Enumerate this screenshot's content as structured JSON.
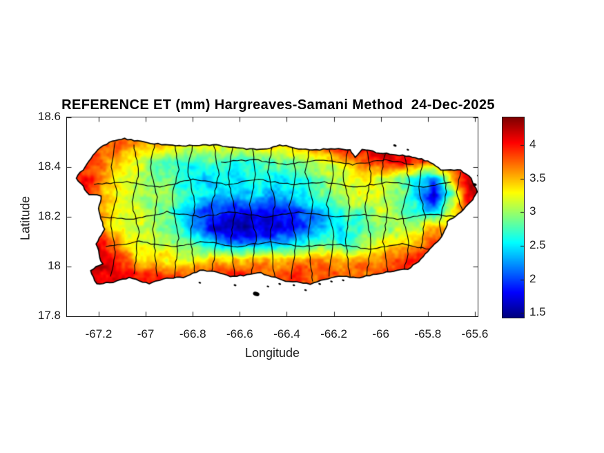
{
  "figure": {
    "background": "#ffffff",
    "colors": {
      "title_text": "#000000",
      "axis_text": "#1b1b1b",
      "axis_line": "#1b1b1b",
      "boundary_line": "#000000",
      "coastline": "#000000",
      "colorbar_low": "#000080",
      "colorbar_high": "#800000"
    }
  },
  "chart_data": {
    "type": "heatmap",
    "title": "REFERENCE ET (mm) Hargreaves-Samani Method  24-Dec-2025",
    "xlabel": "Longitude",
    "ylabel": "Latitude",
    "units": "mm",
    "region": "Puerto Rico with municipal boundaries",
    "colormap": "jet",
    "xlim": [
      -67.335,
      -65.588
    ],
    "ylim": [
      17.8,
      18.6
    ],
    "x_ticks": {
      "values": [
        -67.2,
        -67.0,
        -66.8,
        -66.6,
        -66.4,
        -66.2,
        -66.0,
        -65.8,
        -65.6
      ],
      "labels": [
        "-67.2",
        "-67",
        "-66.8",
        "-66.6",
        "-66.4",
        "-66.2",
        "-66",
        "-65.8",
        "-65.6"
      ]
    },
    "y_ticks": {
      "values": [
        18.6,
        18.4,
        18.2,
        18.0,
        17.8
      ],
      "labels": [
        "18.6",
        "18.4",
        "18.2",
        "18",
        "17.8"
      ]
    },
    "colorbar": {
      "clim": [
        1.43,
        4.41
      ],
      "tick_values": [
        4,
        3.5,
        3,
        2.5,
        2,
        1.5
      ],
      "tick_labels": [
        "4",
        "3.5",
        "3",
        "2.5",
        "2",
        "1.5"
      ]
    },
    "grid": {
      "lon0": -67.35,
      "dlon": 0.075,
      "ncols": 25,
      "lat0": 18.55,
      "dlat": -0.065,
      "nrows": 11,
      "values": [
        [
          3.8,
          3.8,
          3.7,
          3.6,
          3.5,
          3.4,
          3.4,
          3.4,
          3.4,
          3.4,
          3.4,
          3.5,
          3.5,
          3.5,
          3.6,
          3.6,
          3.8,
          4.0,
          4.1,
          4.1,
          4.2,
          4.2,
          4.2,
          4.2,
          4.2
        ],
        [
          3.8,
          3.9,
          3.8,
          3.8,
          3.6,
          3.4,
          3.4,
          3.3,
          3.3,
          3.2,
          3.3,
          3.3,
          3.4,
          3.5,
          3.6,
          3.8,
          4.0,
          4.1,
          4.1,
          4.0,
          4.1,
          4.1,
          4.2,
          4.2,
          4.2
        ],
        [
          3.9,
          3.9,
          3.7,
          3.5,
          3.2,
          2.9,
          2.7,
          2.6,
          2.7,
          2.7,
          2.6,
          2.7,
          2.8,
          2.9,
          3.0,
          3.2,
          3.5,
          3.8,
          4.0,
          4.0,
          3.9,
          3.8,
          4.1,
          4.2,
          4.2
        ],
        [
          4.0,
          4.0,
          3.8,
          3.4,
          3.2,
          3.0,
          2.8,
          2.6,
          2.5,
          2.6,
          2.4,
          2.6,
          2.5,
          2.7,
          2.8,
          3.0,
          3.2,
          3.3,
          3.2,
          2.9,
          2.6,
          2.2,
          3.4,
          4.2,
          4.3
        ],
        [
          4.1,
          4.1,
          3.6,
          3.3,
          3.1,
          3.0,
          2.9,
          2.7,
          2.5,
          2.4,
          2.3,
          2.4,
          2.3,
          2.4,
          2.6,
          2.9,
          3.1,
          3.3,
          3.2,
          2.9,
          2.4,
          1.6,
          2.8,
          4.2,
          4.3
        ],
        [
          4.2,
          4.0,
          3.5,
          3.2,
          3.1,
          3.0,
          2.8,
          2.4,
          2.0,
          1.9,
          1.8,
          1.9,
          1.8,
          2.0,
          2.2,
          2.5,
          2.8,
          2.8,
          3.1,
          3.0,
          2.6,
          2.4,
          3.3,
          4.0,
          4.2
        ],
        [
          4.3,
          4.1,
          3.6,
          3.3,
          3.2,
          3.1,
          2.9,
          2.5,
          1.9,
          1.6,
          1.5,
          1.7,
          1.6,
          1.8,
          2.1,
          2.4,
          2.6,
          2.8,
          2.9,
          3.1,
          3.0,
          3.5,
          3.6,
          4.0,
          4.1
        ],
        [
          4.3,
          4.1,
          4.0,
          3.5,
          3.3,
          3.2,
          3.1,
          2.9,
          2.5,
          2.2,
          2.1,
          2.2,
          2.2,
          2.4,
          2.6,
          2.8,
          2.7,
          3.0,
          3.2,
          3.3,
          3.5,
          3.8,
          4.0,
          4.1,
          4.1
        ],
        [
          4.4,
          4.2,
          4.2,
          4.0,
          3.5,
          3.4,
          3.3,
          3.2,
          3.4,
          3.4,
          3.5,
          3.5,
          3.5,
          3.6,
          3.6,
          3.6,
          3.5,
          3.6,
          3.6,
          3.8,
          3.9,
          4.0,
          4.1,
          4.1,
          4.1
        ],
        [
          4.4,
          4.3,
          4.2,
          4.1,
          3.9,
          3.9,
          4.0,
          3.8,
          3.8,
          3.9,
          4.0,
          3.8,
          3.7,
          4.0,
          3.8,
          3.8,
          3.7,
          3.8,
          3.9,
          4.0,
          4.0,
          4.0,
          4.1,
          4.1,
          4.1
        ],
        [
          4.4,
          4.3,
          4.2,
          4.1,
          4.0,
          3.9,
          4.0,
          3.9,
          3.8,
          3.9,
          4.0,
          3.9,
          3.8,
          3.8,
          3.8,
          3.8,
          3.8,
          3.8,
          3.9,
          4.0,
          4.0,
          4.0,
          4.1,
          4.1,
          4.1
        ]
      ]
    },
    "coastline": [
      [
        -67.295,
        18.355
      ],
      [
        -67.205,
        18.47
      ],
      [
        -67.155,
        18.5
      ],
      [
        -67.09,
        18.515
      ],
      [
        -66.98,
        18.495
      ],
      [
        -66.9,
        18.49
      ],
      [
        -66.8,
        18.485
      ],
      [
        -66.7,
        18.49
      ],
      [
        -66.6,
        18.475
      ],
      [
        -66.5,
        18.47
      ],
      [
        -66.43,
        18.49
      ],
      [
        -66.35,
        18.475
      ],
      [
        -66.26,
        18.47
      ],
      [
        -66.18,
        18.475
      ],
      [
        -66.13,
        18.47
      ],
      [
        -66.11,
        18.44
      ],
      [
        -66.08,
        18.47
      ],
      [
        -65.99,
        18.455
      ],
      [
        -65.88,
        18.445
      ],
      [
        -65.8,
        18.425
      ],
      [
        -65.745,
        18.39
      ],
      [
        -65.66,
        18.39
      ],
      [
        -65.615,
        18.355
      ],
      [
        -65.59,
        18.3
      ],
      [
        -65.61,
        18.27
      ],
      [
        -65.65,
        18.23
      ],
      [
        -65.715,
        18.18
      ],
      [
        -65.74,
        18.12
      ],
      [
        -65.8,
        18.06
      ],
      [
        -65.84,
        18.02
      ],
      [
        -65.885,
        17.99
      ],
      [
        -65.99,
        17.975
      ],
      [
        -66.09,
        17.955
      ],
      [
        -66.16,
        17.96
      ],
      [
        -66.21,
        17.955
      ],
      [
        -66.3,
        17.93
      ],
      [
        -66.42,
        17.945
      ],
      [
        -66.51,
        17.975
      ],
      [
        -66.57,
        17.965
      ],
      [
        -66.64,
        17.96
      ],
      [
        -66.71,
        17.98
      ],
      [
        -66.77,
        17.985
      ],
      [
        -66.84,
        17.955
      ],
      [
        -66.91,
        17.955
      ],
      [
        -66.985,
        17.93
      ],
      [
        -67.07,
        17.955
      ],
      [
        -67.125,
        17.94
      ],
      [
        -67.21,
        17.93
      ],
      [
        -67.235,
        17.985
      ],
      [
        -67.185,
        18.01
      ],
      [
        -67.21,
        18.09
      ],
      [
        -67.175,
        18.15
      ],
      [
        -67.2,
        18.22
      ],
      [
        -67.19,
        18.285
      ],
      [
        -67.24,
        18.29
      ],
      [
        -67.295,
        18.355
      ]
    ],
    "islets": [
      [
        -66.53,
        17.89,
        3.0
      ],
      [
        -66.62,
        17.925,
        1.3
      ],
      [
        -66.48,
        17.92,
        1.2
      ],
      [
        -66.43,
        17.93,
        1.3
      ],
      [
        -66.37,
        17.925,
        1.2
      ],
      [
        -66.32,
        17.905,
        1.2
      ],
      [
        -66.26,
        17.93,
        1.3
      ],
      [
        -66.21,
        17.94,
        1.2
      ],
      [
        -66.16,
        17.945,
        1.2
      ],
      [
        -66.77,
        17.935,
        1.2
      ],
      [
        -65.6,
        18.33,
        1.8
      ],
      [
        -65.575,
        18.305,
        1.3
      ],
      [
        -65.585,
        18.365,
        1.3
      ],
      [
        -65.94,
        18.487,
        1.6
      ],
      [
        -65.885,
        18.47,
        1.2
      ]
    ],
    "boundaries": [
      [
        [
          -67.13,
          18.5
        ],
        [
          -67.15,
          18.4
        ],
        [
          -67.12,
          18.3
        ],
        [
          -67.15,
          18.18
        ],
        [
          -67.13,
          18.06
        ],
        [
          -67.15,
          17.96
        ]
      ],
      [
        [
          -67.05,
          18.49
        ],
        [
          -67.03,
          18.38
        ],
        [
          -67.06,
          18.26
        ],
        [
          -67.03,
          18.14
        ],
        [
          -67.05,
          17.97
        ]
      ],
      [
        [
          -66.96,
          18.51
        ],
        [
          -66.98,
          18.4
        ],
        [
          -66.95,
          18.28
        ],
        [
          -66.97,
          18.15
        ],
        [
          -66.95,
          17.96
        ]
      ],
      [
        [
          -66.88,
          18.5
        ],
        [
          -66.86,
          18.39
        ],
        [
          -66.89,
          18.27
        ],
        [
          -66.86,
          18.13
        ],
        [
          -66.88,
          17.95
        ]
      ],
      [
        [
          -66.8,
          18.5
        ],
        [
          -66.82,
          18.38
        ],
        [
          -66.79,
          18.25
        ],
        [
          -66.81,
          18.12
        ],
        [
          -66.79,
          17.97
        ]
      ],
      [
        [
          -66.71,
          18.5
        ],
        [
          -66.69,
          18.37
        ],
        [
          -66.72,
          18.24
        ],
        [
          -66.7,
          18.11
        ],
        [
          -66.72,
          17.96
        ]
      ],
      [
        [
          -66.63,
          18.49
        ],
        [
          -66.65,
          18.36
        ],
        [
          -66.62,
          18.23
        ],
        [
          -66.64,
          18.1
        ],
        [
          -66.62,
          17.95
        ]
      ],
      [
        [
          -66.55,
          18.49
        ],
        [
          -66.53,
          18.37
        ],
        [
          -66.56,
          18.25
        ],
        [
          -66.53,
          18.12
        ],
        [
          -66.55,
          17.97
        ]
      ],
      [
        [
          -66.46,
          18.5
        ],
        [
          -66.48,
          18.38
        ],
        [
          -66.45,
          18.26
        ],
        [
          -66.47,
          18.13
        ],
        [
          -66.45,
          17.94
        ]
      ],
      [
        [
          -66.38,
          18.49
        ],
        [
          -66.36,
          18.37
        ],
        [
          -66.39,
          18.24
        ],
        [
          -66.36,
          18.11
        ],
        [
          -66.38,
          17.95
        ]
      ],
      [
        [
          -66.3,
          18.49
        ],
        [
          -66.32,
          18.38
        ],
        [
          -66.29,
          18.26
        ],
        [
          -66.31,
          18.12
        ],
        [
          -66.29,
          17.94
        ]
      ],
      [
        [
          -66.22,
          18.48
        ],
        [
          -66.2,
          18.37
        ],
        [
          -66.23,
          18.25
        ],
        [
          -66.2,
          18.12
        ],
        [
          -66.22,
          17.96
        ]
      ],
      [
        [
          -66.14,
          18.48
        ],
        [
          -66.16,
          18.36
        ],
        [
          -66.13,
          18.24
        ],
        [
          -66.15,
          18.11
        ],
        [
          -66.13,
          17.95
        ]
      ],
      [
        [
          -66.06,
          18.47
        ],
        [
          -66.04,
          18.36
        ],
        [
          -66.07,
          18.24
        ],
        [
          -66.04,
          18.1
        ],
        [
          -66.06,
          17.96
        ]
      ],
      [
        [
          -65.98,
          18.47
        ],
        [
          -66.0,
          18.35
        ],
        [
          -65.97,
          18.23
        ],
        [
          -65.99,
          18.1
        ],
        [
          -65.97,
          17.97
        ]
      ],
      [
        [
          -65.9,
          18.46
        ],
        [
          -65.88,
          18.34
        ],
        [
          -65.91,
          18.22
        ],
        [
          -65.88,
          18.08
        ],
        [
          -65.9,
          17.99
        ]
      ],
      [
        [
          -65.82,
          18.43
        ],
        [
          -65.84,
          18.32
        ],
        [
          -65.81,
          18.2
        ],
        [
          -65.83,
          18.07
        ]
      ],
      [
        [
          -65.74,
          18.41
        ],
        [
          -65.72,
          18.3
        ],
        [
          -65.75,
          18.18
        ],
        [
          -65.73,
          18.08
        ]
      ],
      [
        [
          -65.66,
          18.38
        ],
        [
          -65.68,
          18.3
        ],
        [
          -65.65,
          18.22
        ]
      ],
      [
        [
          -67.22,
          18.33
        ],
        [
          -67.08,
          18.34
        ],
        [
          -66.94,
          18.32
        ],
        [
          -66.8,
          18.35
        ],
        [
          -66.66,
          18.33
        ],
        [
          -66.52,
          18.35
        ],
        [
          -66.38,
          18.33
        ],
        [
          -66.24,
          18.34
        ],
        [
          -66.1,
          18.32
        ],
        [
          -65.96,
          18.34
        ],
        [
          -65.82,
          18.32
        ],
        [
          -65.7,
          18.34
        ]
      ],
      [
        [
          -67.19,
          18.2
        ],
        [
          -67.05,
          18.19
        ],
        [
          -66.91,
          18.22
        ],
        [
          -66.77,
          18.2
        ],
        [
          -66.63,
          18.22
        ],
        [
          -66.49,
          18.2
        ],
        [
          -66.35,
          18.22
        ],
        [
          -66.21,
          18.2
        ],
        [
          -66.07,
          18.21
        ],
        [
          -65.93,
          18.19
        ],
        [
          -65.79,
          18.21
        ],
        [
          -65.67,
          18.2
        ]
      ],
      [
        [
          -67.17,
          18.08
        ],
        [
          -67.03,
          18.1
        ],
        [
          -66.89,
          18.08
        ],
        [
          -66.75,
          18.1
        ],
        [
          -66.61,
          18.08
        ],
        [
          -66.47,
          18.1
        ],
        [
          -66.33,
          18.08
        ],
        [
          -66.19,
          18.09
        ],
        [
          -66.05,
          18.07
        ],
        [
          -65.91,
          18.09
        ],
        [
          -65.79,
          18.07
        ]
      ],
      [
        [
          -66.68,
          18.42
        ],
        [
          -66.54,
          18.43
        ],
        [
          -66.4,
          18.41
        ],
        [
          -66.26,
          18.43
        ],
        [
          -66.12,
          18.41
        ],
        [
          -65.98,
          18.43
        ],
        [
          -65.86,
          18.41
        ]
      ]
    ]
  }
}
